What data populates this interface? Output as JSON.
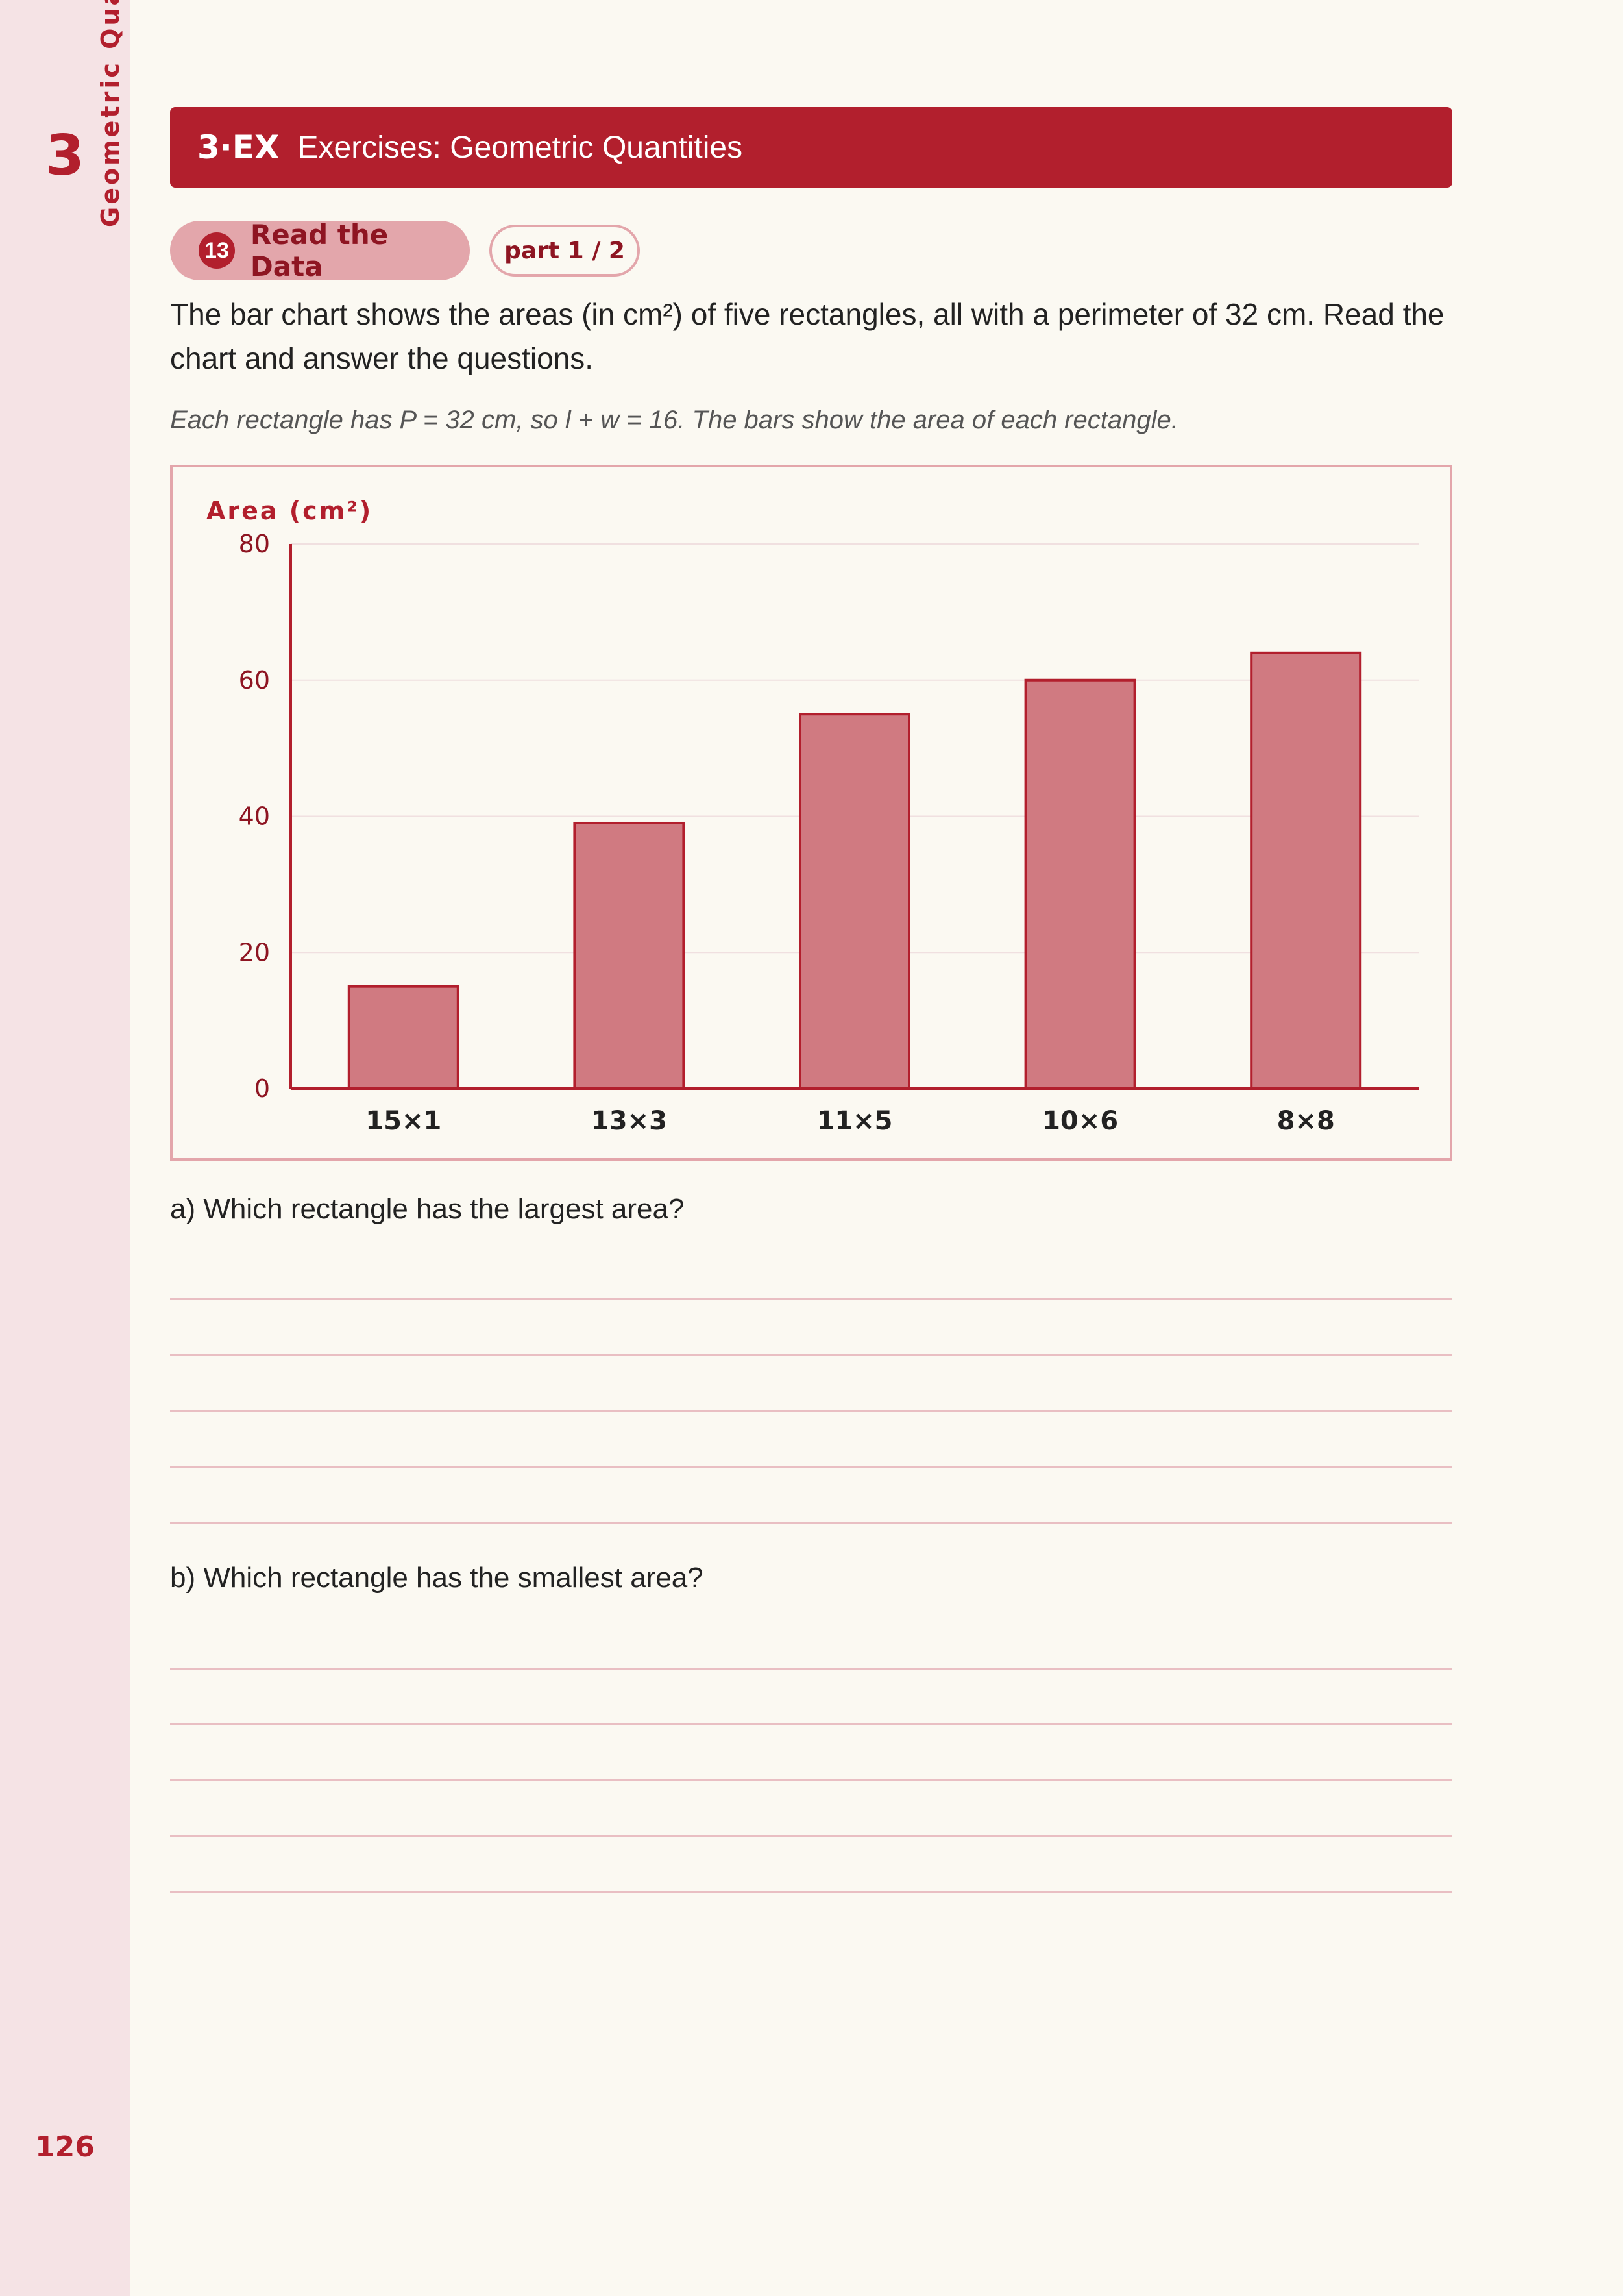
{
  "sidebar": {
    "chapter_number": "3",
    "chapter_title": "Geometric Quantities",
    "page_number": "126"
  },
  "header": {
    "code": "3·EX",
    "title": "Exercises: Geometric Quantities"
  },
  "exercise": {
    "number": "13",
    "label": "Read the Data",
    "part": "part 1 / 2",
    "intro": "The bar chart shows the areas (in cm²) of five rectangles, all with a perimeter of 32 cm. Read the chart and answer the questions.",
    "note": "Each rectangle has P = 32 cm, so l + w = 16. The bars show the area of each rectangle."
  },
  "chart_data": {
    "type": "bar",
    "ylabel": "Area (cm²)",
    "xlabel": "",
    "categories": [
      "15×1",
      "13×3",
      "11×5",
      "10×6",
      "8×8"
    ],
    "values": [
      15,
      39,
      55,
      60,
      64
    ],
    "ylim": [
      0,
      80
    ],
    "yticks": [
      0,
      20,
      40,
      60,
      80
    ],
    "grid": true,
    "colors": {
      "bar_fill": "#d07a81",
      "bar_stroke": "#b21f2d",
      "axis": "#b21f2d",
      "grid": "#f0e0e0"
    }
  },
  "questions": [
    {
      "text": "a) Which rectangle has the largest area?",
      "answer_lines": 5
    },
    {
      "text": "b) Which rectangle has the smallest area?",
      "answer_lines": 5
    }
  ],
  "colors": {
    "accent": "#b21f2d",
    "sidebar": "#f5e3e5",
    "page": "#fbf9f2"
  }
}
